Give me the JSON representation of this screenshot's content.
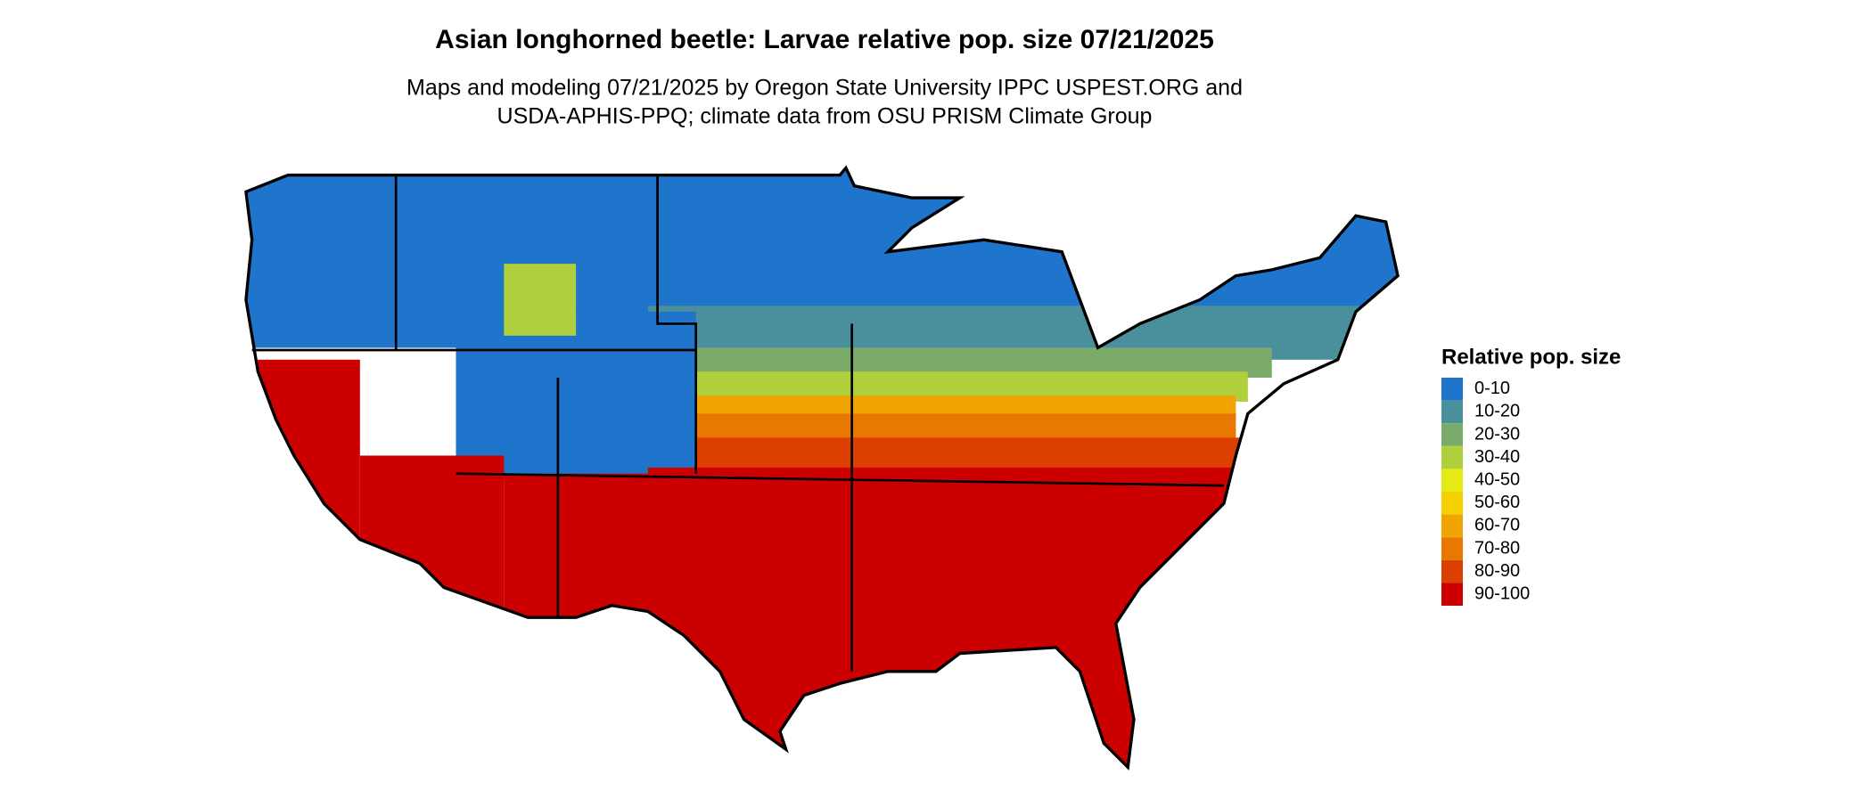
{
  "title": "Asian longhorned beetle: Larvae relative pop. size 07/21/2025",
  "subtitle": [
    "Maps and modeling 07/21/2025 by Oregon State University IPPC USPEST.ORG and",
    "USDA-APHIS-PPQ; climate data from OSU PRISM Climate Group"
  ],
  "legend": {
    "title": "Relative pop. size",
    "items": [
      {
        "label": "0-10",
        "color": "#1f74cc"
      },
      {
        "label": "10-20",
        "color": "#4a8f9c"
      },
      {
        "label": "20-30",
        "color": "#7aab6a"
      },
      {
        "label": "30-40",
        "color": "#b0cf3c"
      },
      {
        "label": "40-50",
        "color": "#e6ea14"
      },
      {
        "label": "50-60",
        "color": "#f4d000"
      },
      {
        "label": "60-70",
        "color": "#f0a400"
      },
      {
        "label": "70-80",
        "color": "#e87800"
      },
      {
        "label": "80-90",
        "color": "#dc4000"
      },
      {
        "label": "90-100",
        "color": "#cc0000"
      }
    ]
  }
}
